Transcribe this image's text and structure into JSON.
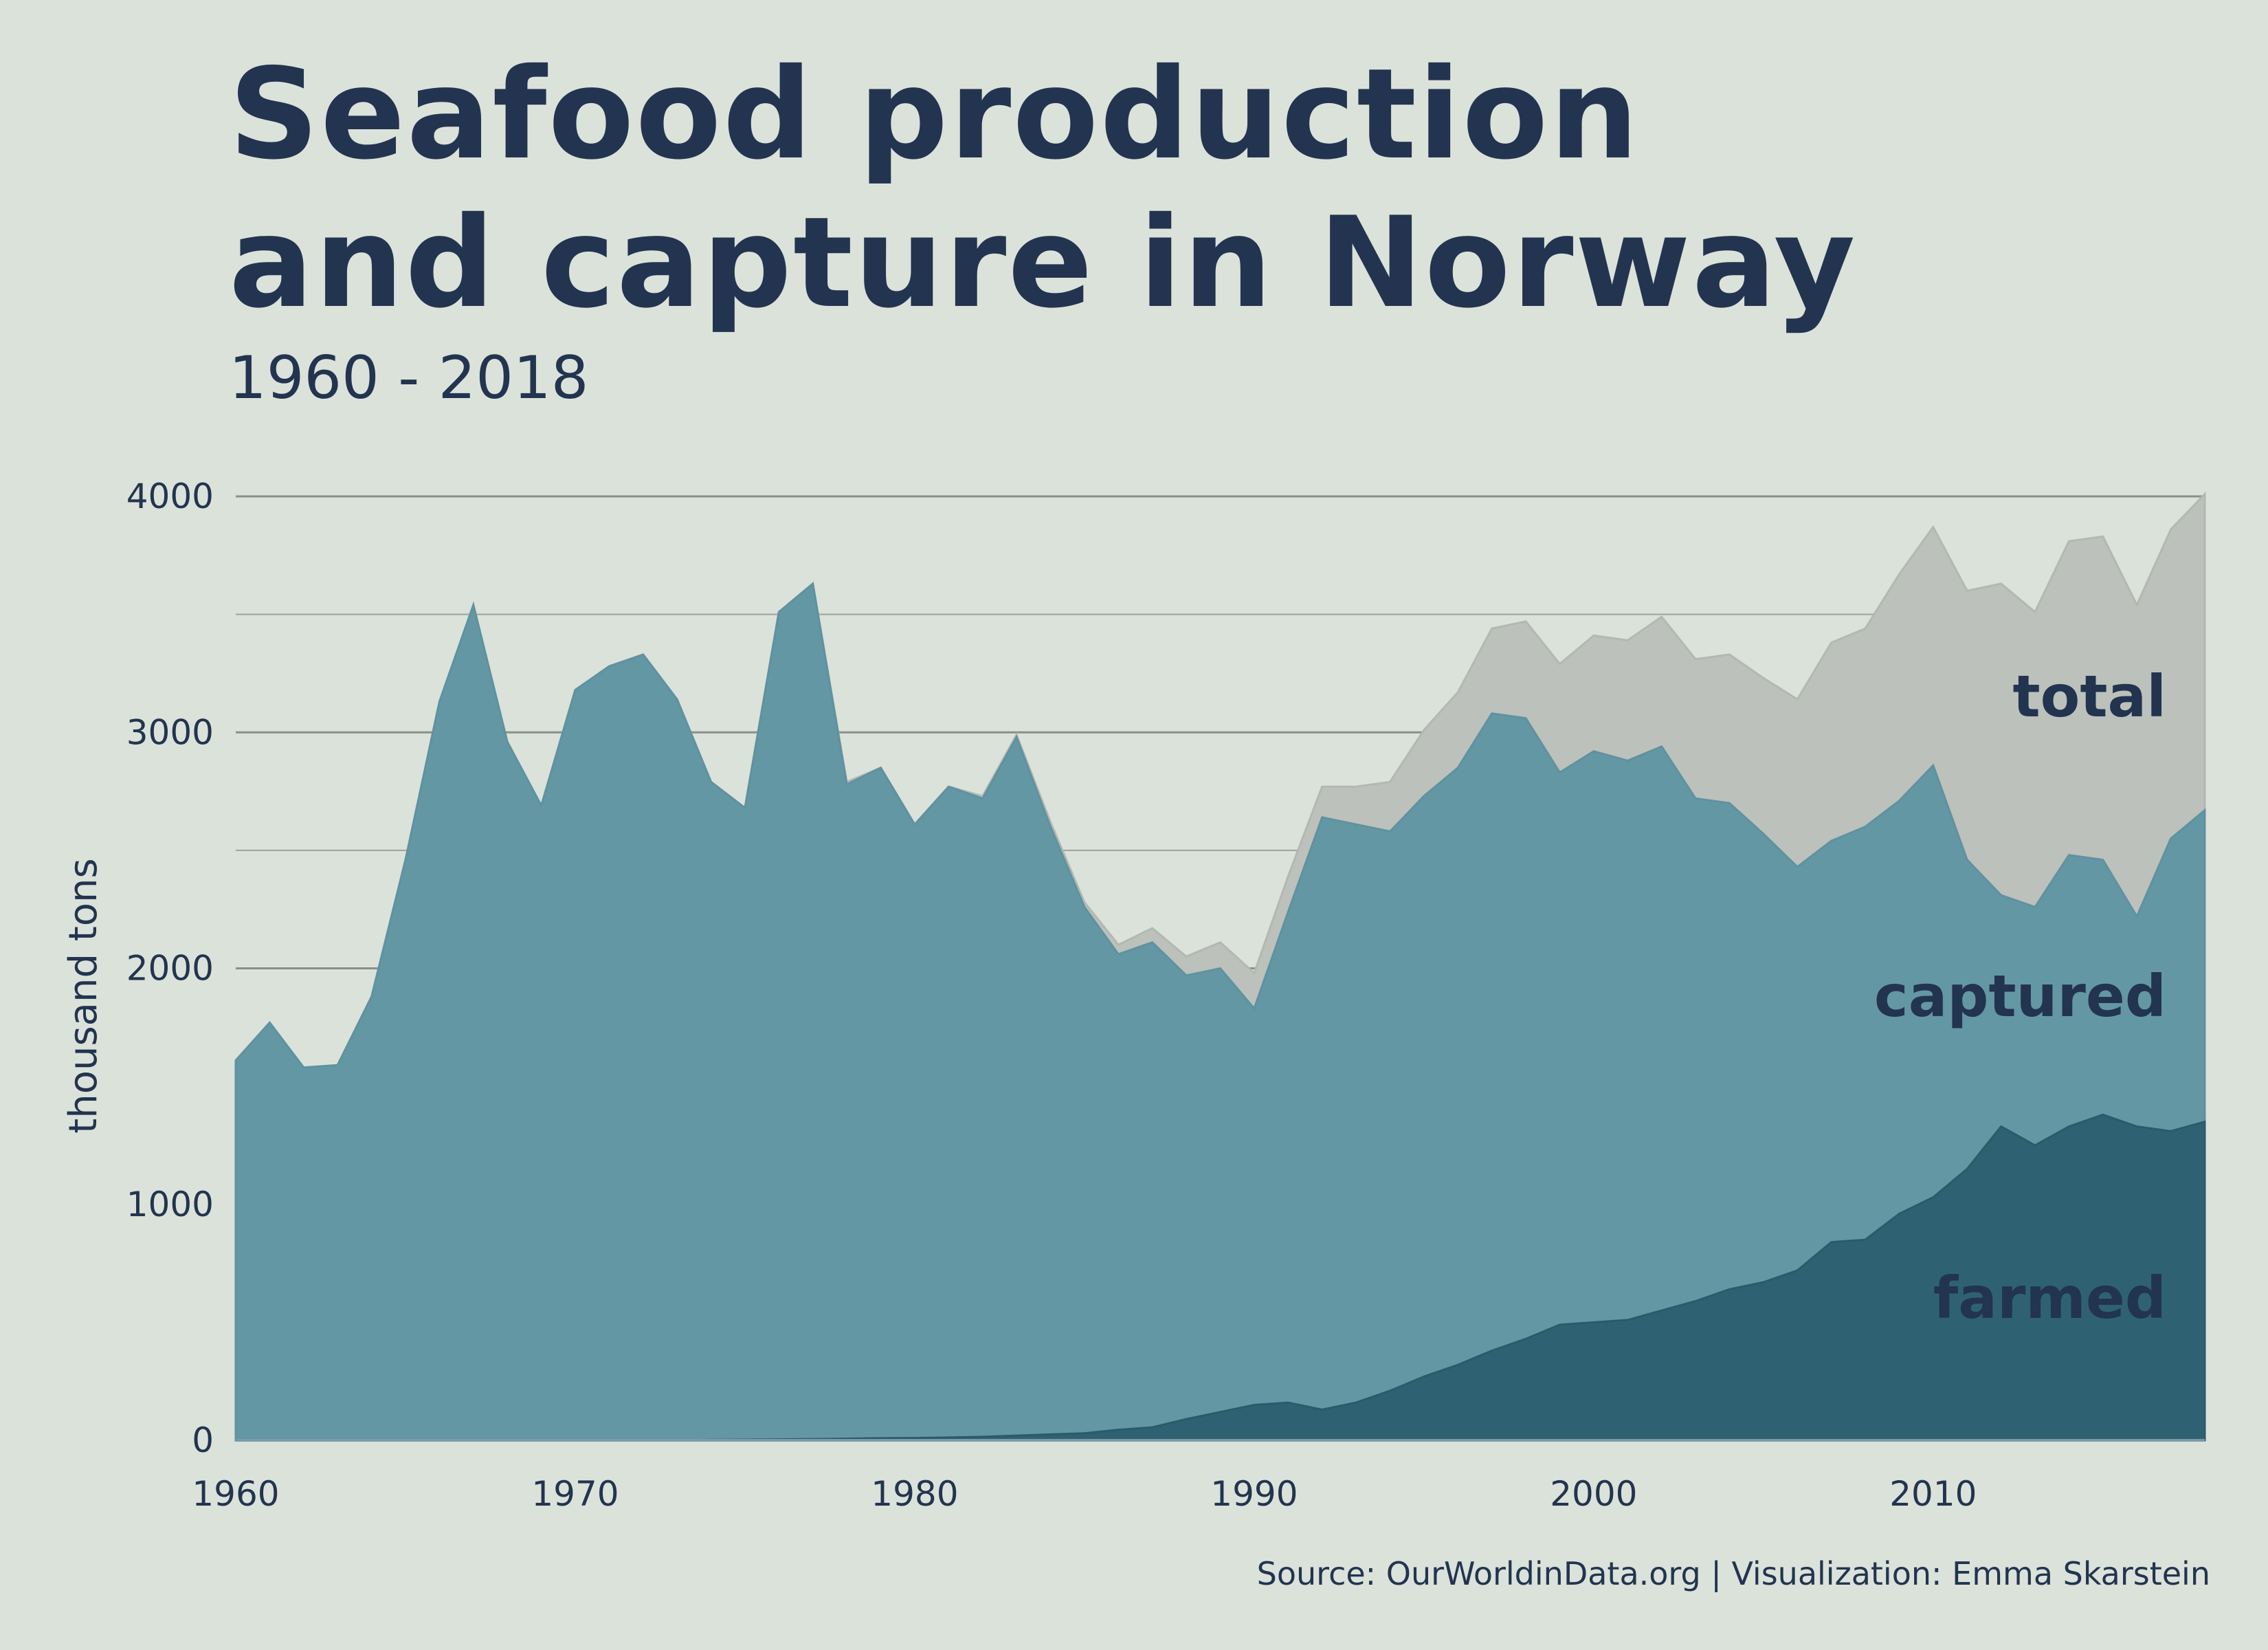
{
  "title_lines": [
    "Seafood production",
    "and capture in Norway"
  ],
  "subtitle": "1960 - 2018",
  "source": "Source: OurWorldinData.org  |  Visualization: Emma Skarstein",
  "colors": {
    "background": "#dbe2da",
    "total": "#bcc1bb",
    "captured": "#6497a4",
    "farmed": "#2e6272",
    "text": "#22344f",
    "grid_major": "#8a8f8a",
    "grid_minor": "#9ea39e"
  },
  "chart_data": {
    "type": "area",
    "ylabel": "thousand tons",
    "xlabel": "",
    "xlim": [
      1960,
      2018
    ],
    "ylim": [
      0,
      4000
    ],
    "x_ticks": [
      1960,
      1970,
      1980,
      1990,
      2000,
      2010
    ],
    "y_ticks": [
      0,
      1000,
      2000,
      3000,
      4000
    ],
    "grid": true,
    "x": [
      1960,
      1961,
      1962,
      1963,
      1964,
      1965,
      1966,
      1967,
      1968,
      1969,
      1970,
      1971,
      1972,
      1973,
      1974,
      1975,
      1976,
      1977,
      1978,
      1979,
      1980,
      1981,
      1982,
      1983,
      1984,
      1985,
      1986,
      1987,
      1988,
      1989,
      1990,
      1991,
      1992,
      1993,
      1994,
      1995,
      1996,
      1997,
      1998,
      1999,
      2000,
      2001,
      2002,
      2003,
      2004,
      2005,
      2006,
      2007,
      2008,
      2009,
      2010,
      2011,
      2012,
      2013,
      2014,
      2015,
      2016,
      2017,
      2018
    ],
    "series": [
      {
        "name": "total",
        "values": [
          1610,
          1770,
          1580,
          1590,
          1880,
          2460,
          3130,
          3540,
          2960,
          2690,
          3180,
          3280,
          3330,
          3140,
          2790,
          2680,
          3510,
          3630,
          2790,
          2850,
          2610,
          2770,
          2730,
          2990,
          2620,
          2280,
          2100,
          2170,
          2050,
          2110,
          1980,
          2390,
          2770,
          2770,
          2790,
          3010,
          3170,
          3440,
          3470,
          3290,
          3410,
          3390,
          3490,
          3310,
          3330,
          3230,
          3140,
          3380,
          3440,
          3670,
          3870,
          3600,
          3630,
          3510,
          3810,
          3830,
          3540,
          3860,
          4010
        ]
      },
      {
        "name": "captured",
        "values": [
          1610,
          1770,
          1580,
          1590,
          1880,
          2460,
          3130,
          3540,
          2960,
          2690,
          3180,
          3280,
          3330,
          3140,
          2790,
          2680,
          3510,
          3630,
          2780,
          2850,
          2610,
          2770,
          2720,
          2980,
          2600,
          2260,
          2060,
          2110,
          1970,
          2000,
          1830,
          2240,
          2640,
          2610,
          2580,
          2730,
          2850,
          3080,
          3060,
          2830,
          2920,
          2880,
          2940,
          2720,
          2700,
          2570,
          2430,
          2540,
          2600,
          2710,
          2860,
          2460,
          2310,
          2260,
          2480,
          2460,
          2220,
          2550,
          2670
        ]
      },
      {
        "name": "farmed",
        "values": [
          0,
          0,
          0,
          0,
          0,
          0,
          0,
          0,
          0,
          0,
          0,
          1,
          1,
          1,
          2,
          3,
          4,
          5,
          7,
          9,
          10,
          12,
          15,
          20,
          25,
          30,
          45,
          55,
          90,
          120,
          150,
          160,
          130,
          160,
          210,
          270,
          320,
          380,
          430,
          490,
          500,
          510,
          550,
          590,
          640,
          670,
          720,
          840,
          850,
          960,
          1030,
          1150,
          1330,
          1250,
          1330,
          1380,
          1330,
          1310,
          1350
        ]
      }
    ]
  }
}
